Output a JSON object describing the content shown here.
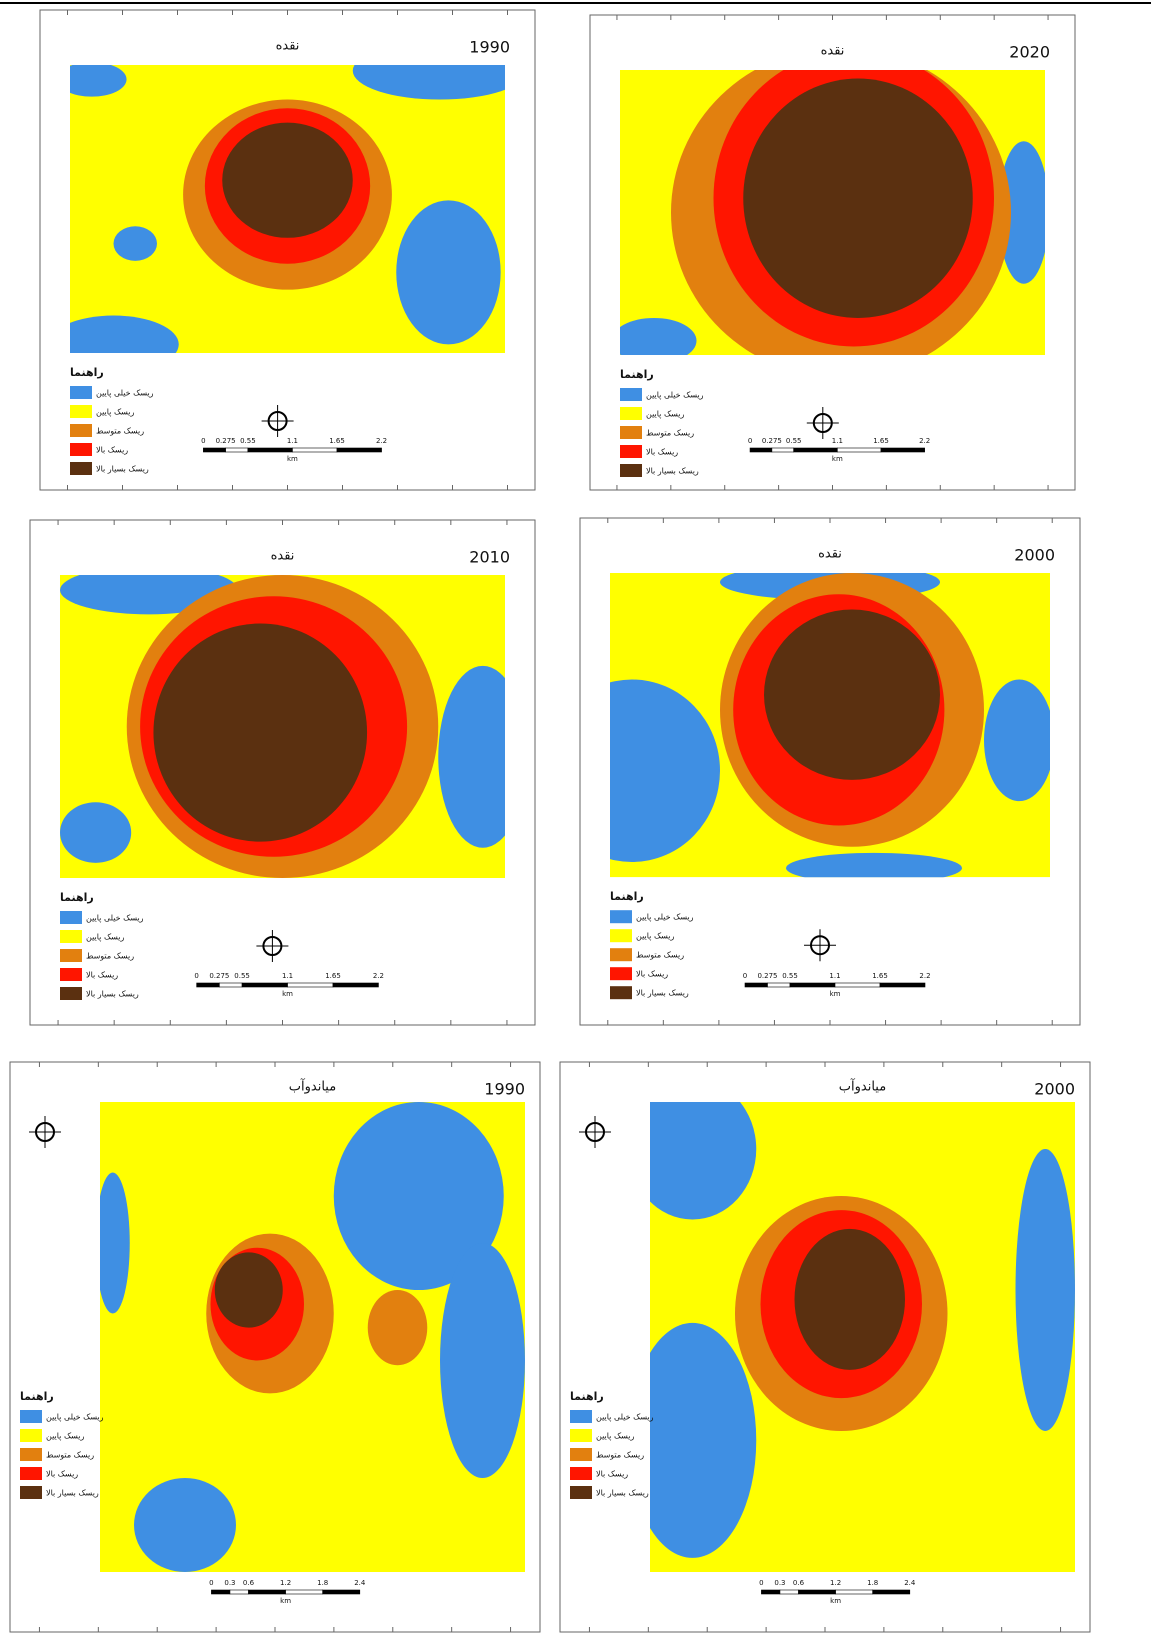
{
  "panels": [
    {
      "title": "نقده",
      "year": "1990",
      "legend_title": "راهنما",
      "legend": [
        "ریسک خیلی پایین",
        "ریسک پایین",
        "ریسک متوسط",
        "ریسک بالا",
        "ریسک بسیار بالا"
      ],
      "scale_labels": [
        "0",
        "0.275",
        "0.55",
        "1.1",
        "1.65",
        "2.2"
      ],
      "scale_unit": "km"
    },
    {
      "title": "نقده",
      "year": "2020",
      "legend_title": "راهنما",
      "legend": [
        "ریسک خیلی پایین",
        "ریسک پایین",
        "ریسک متوسط",
        "ریسک بالا",
        "ریسک بسیار بالا"
      ],
      "scale_labels": [
        "0",
        "0.275",
        "0.55",
        "1.1",
        "1.65",
        "2.2"
      ],
      "scale_unit": "km"
    },
    {
      "title": "نقده",
      "year": "2010",
      "legend_title": "راهنما",
      "legend": [
        "ریسک خیلی پایین",
        "ریسک پایین",
        "ریسک متوسط",
        "ریسک بالا",
        "ریسک بسیار بالا"
      ],
      "scale_labels": [
        "0",
        "0.275",
        "0.55",
        "1.1",
        "1.65",
        "2.2"
      ],
      "scale_unit": "km"
    },
    {
      "title": "نقده",
      "year": "2000",
      "legend_title": "راهنما",
      "legend": [
        "ریسک خیلی پایین",
        "ریسک پایین",
        "ریسک متوسط",
        "ریسک بالا",
        "ریسک بسیار بالا"
      ],
      "scale_labels": [
        "0",
        "0.275",
        "0.55",
        "1.1",
        "1.65",
        "2.2"
      ],
      "scale_unit": "km"
    },
    {
      "title": "میاندوآب",
      "year": "1990",
      "legend_title": "راهنما",
      "legend": [
        "ریسک خیلی پایین",
        "ریسک پایین",
        "ریسک متوسط",
        "ریسک بالا",
        "ریسک بسیار بالا"
      ],
      "scale_labels": [
        "0",
        "0.3",
        "0.6",
        "1.2",
        "1.8",
        "2.4"
      ],
      "scale_unit": "km"
    },
    {
      "title": "میاندوآب",
      "year": "2000",
      "legend_title": "راهنما",
      "legend": [
        "ریسک خیلی پایین",
        "ریسک پایین",
        "ریسک متوسط",
        "ریسک بالا",
        "ریسک بسیار بالا"
      ],
      "scale_labels": [
        "0",
        "0.3",
        "0.6",
        "1.2",
        "1.8",
        "2.4"
      ],
      "scale_unit": "km"
    }
  ]
}
